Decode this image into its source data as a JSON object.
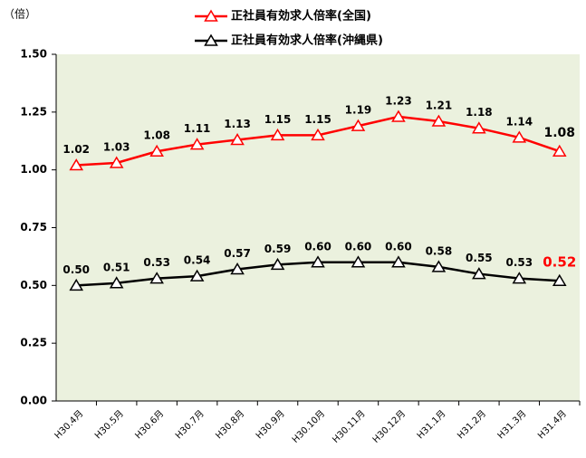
{
  "chart_data": {
    "type": "line",
    "y_unit": "（倍）",
    "categories": [
      "H30.4月",
      "H30.5月",
      "H30.6月",
      "H30.7月",
      "H30.8月",
      "H30.9月",
      "H30.10月",
      "H30.11月",
      "H30.12月",
      "H31.1月",
      "H31.2月",
      "H31.3月",
      "H31.4月"
    ],
    "series": [
      {
        "name": "正社員有効求人倍率(全国)",
        "color": "#ff0000",
        "values": [
          1.02,
          1.03,
          1.08,
          1.11,
          1.13,
          1.15,
          1.15,
          1.19,
          1.23,
          1.21,
          1.18,
          1.14,
          1.08
        ]
      },
      {
        "name": "正社員有効求人倍率(沖縄県)",
        "color": "#000000",
        "values": [
          0.5,
          0.51,
          0.53,
          0.54,
          0.57,
          0.59,
          0.6,
          0.6,
          0.6,
          0.58,
          0.55,
          0.53,
          0.52
        ],
        "value_labels": [
          "0.50",
          "0.51",
          "0.53",
          "0.54",
          "0.57",
          "0.59",
          "0.60",
          "0.60",
          "0.60",
          "0.58",
          "0.55",
          "0.53",
          "0.52"
        ]
      }
    ],
    "ylim": [
      0,
      1.5
    ],
    "yticks": [
      {
        "value": 0,
        "label": "0.00"
      },
      {
        "value": 0.25,
        "label": "0.25"
      },
      {
        "value": 0.5,
        "label": "0.50"
      },
      {
        "value": 0.75,
        "label": "0.75"
      },
      {
        "value": 1,
        "label": "1.00"
      },
      {
        "value": 1.25,
        "label": "1.25"
      },
      {
        "value": 1.5,
        "label": "1.50"
      }
    ],
    "plot_background": "#ebf1de"
  }
}
